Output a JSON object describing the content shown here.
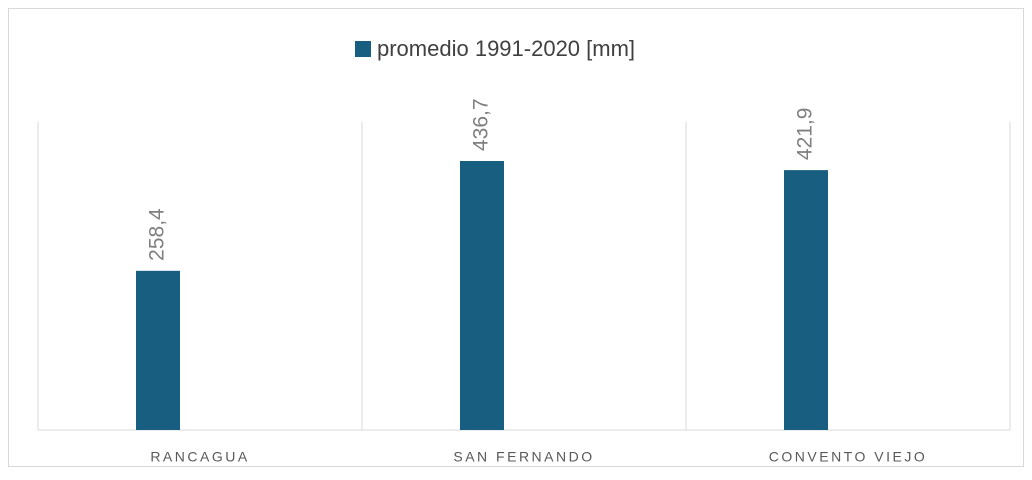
{
  "chart_data": {
    "type": "bar",
    "categories": [
      "RANCAGUA",
      "SAN FERNANDO",
      "CONVENTO VIEJO"
    ],
    "series": [
      {
        "name": "promedio 1991-2020 [mm]",
        "color": "#175e80",
        "values": [
          258.4,
          436.7,
          421.9
        ],
        "value_labels": [
          "258,4",
          "436,7",
          "421,9"
        ]
      }
    ],
    "ylim": [
      0,
      500
    ],
    "legend": "top"
  }
}
